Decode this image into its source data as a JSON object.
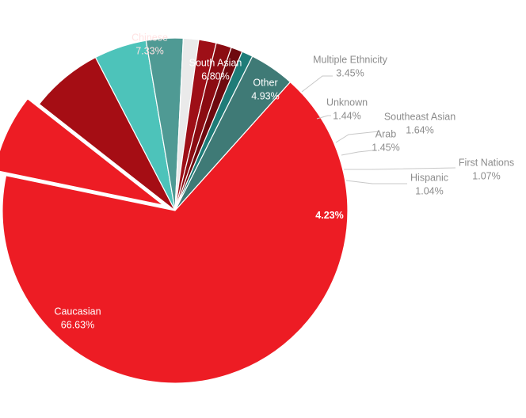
{
  "chart_data": {
    "type": "pie",
    "title": "",
    "slices": [
      {
        "label": "Chinese",
        "value": 7.33,
        "value_label": "7.33%",
        "color": "#ed1c24",
        "explode": true
      },
      {
        "label": "South Asian",
        "value": 6.8,
        "value_label": "6.80%",
        "color": "#a50d14"
      },
      {
        "label": "Other",
        "value": 4.93,
        "value_label": "4.93%",
        "color": "#4dc3ba"
      },
      {
        "label": "Multiple Ethnicity",
        "value": 3.45,
        "value_label": "3.45%",
        "color": "#4f9a94"
      },
      {
        "label": "Unknown",
        "value": 1.44,
        "value_label": "1.44%",
        "color": "#eaeaea"
      },
      {
        "label": "Southeast Asian",
        "value": 1.64,
        "value_label": "1.64%",
        "color": "#9e0f17"
      },
      {
        "label": "Arab",
        "value": 1.45,
        "value_label": "1.45%",
        "color": "#8b0c12"
      },
      {
        "label": "First Nations",
        "value": 1.07,
        "value_label": "1.07%",
        "color": "#6e0a0f"
      },
      {
        "label": "Hispanic",
        "value": 1.04,
        "value_label": "1.04%",
        "color": "#1f7c78"
      },
      {
        "label": "",
        "value": 4.23,
        "value_label": "4.23%",
        "color": "#3f7a76"
      },
      {
        "label": "Caucasian",
        "value": 66.63,
        "value_label": "66.63%",
        "color": "#ed1c24"
      }
    ]
  }
}
